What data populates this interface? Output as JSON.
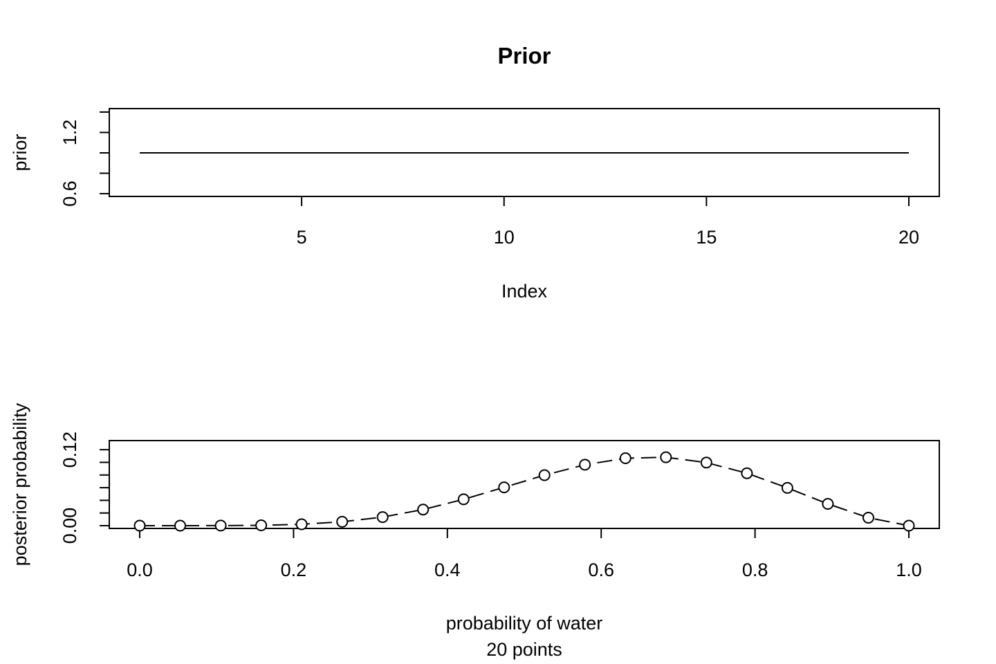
{
  "chart_data": [
    {
      "type": "line",
      "title": "Prior",
      "xlabel": "Index",
      "ylabel": "prior",
      "xlim": [
        1,
        20
      ],
      "ylim": [
        0.6,
        1.4
      ],
      "x_ticks": [
        5,
        10,
        15,
        20
      ],
      "y_ticks": [
        0.6,
        0.8,
        1.0,
        1.2,
        1.4
      ],
      "y_tick_labels": [
        0.6,
        1.2
      ],
      "x_tick_labels": [
        "5",
        "10",
        "15",
        "20"
      ],
      "y_tick_label_text": [
        "0.6",
        "1.2"
      ],
      "x": [
        1,
        2,
        3,
        4,
        5,
        6,
        7,
        8,
        9,
        10,
        11,
        12,
        13,
        14,
        15,
        16,
        17,
        18,
        19,
        20
      ],
      "series": [
        {
          "values": [
            1,
            1,
            1,
            1,
            1,
            1,
            1,
            1,
            1,
            1,
            1,
            1,
            1,
            1,
            1,
            1,
            1,
            1,
            1,
            1
          ]
        }
      ],
      "line_style": "solid",
      "markers": false,
      "grid": false
    },
    {
      "type": "line",
      "title": "",
      "xlabel": "probability of water",
      "subtitle": "20  points",
      "ylabel": "posterior probability",
      "xlim": [
        0,
        1
      ],
      "ylim": [
        0,
        0.13
      ],
      "x_ticks": [
        0.0,
        0.2,
        0.4,
        0.6,
        0.8,
        1.0
      ],
      "x_tick_labels": [
        "0.0",
        "0.2",
        "0.4",
        "0.6",
        "0.8",
        "1.0"
      ],
      "y_ticks": [
        0.0,
        0.02,
        0.04,
        0.06,
        0.08,
        0.1,
        0.12
      ],
      "y_tick_labels": [
        0.0,
        0.12
      ],
      "y_tick_label_text": [
        "0.00",
        "0.12"
      ],
      "x": [
        0.0,
        0.0526,
        0.1053,
        0.1579,
        0.2105,
        0.2632,
        0.3158,
        0.3684,
        0.4211,
        0.4737,
        0.5263,
        0.5789,
        0.6316,
        0.6842,
        0.7368,
        0.7895,
        0.8421,
        0.8947,
        0.9474,
        1.0
      ],
      "series": [
        {
          "values": [
            0.0,
            0.0,
            0.0001,
            0.0006,
            0.0022,
            0.0061,
            0.0136,
            0.0255,
            0.0416,
            0.0605,
            0.0798,
            0.0962,
            0.1065,
            0.108,
            0.0996,
            0.0828,
            0.0597,
            0.0344,
            0.0126,
            0.0
          ]
        }
      ],
      "line_style": "dashed",
      "markers": true,
      "marker_shape": "open-circle",
      "grid": false
    }
  ]
}
